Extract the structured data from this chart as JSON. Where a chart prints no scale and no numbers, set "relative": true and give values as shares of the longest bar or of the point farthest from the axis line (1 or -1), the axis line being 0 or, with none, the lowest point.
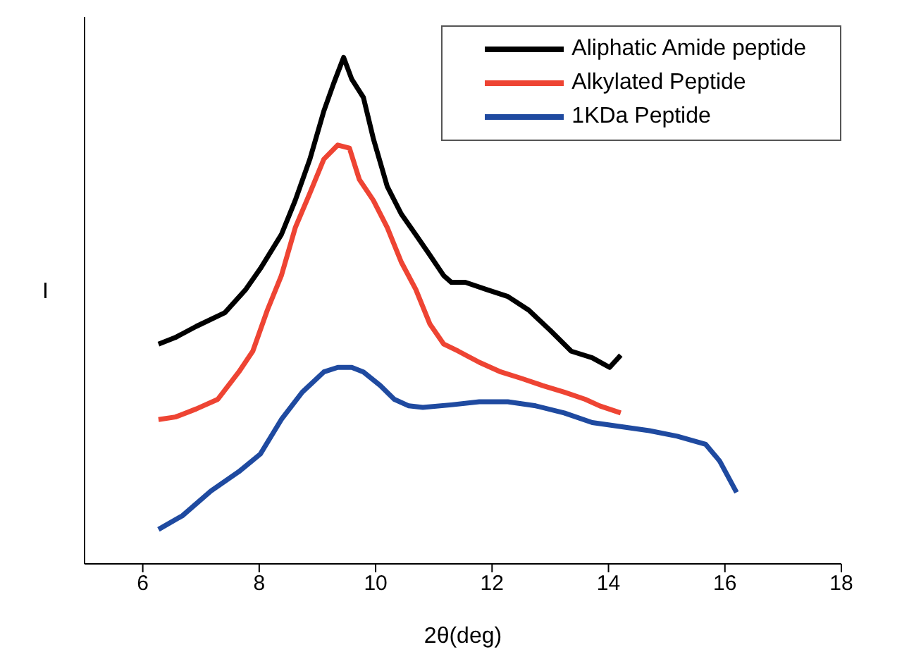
{
  "chart_data": {
    "type": "line",
    "relative": true,
    "xlabel": "2θ(deg)",
    "ylabel": "I",
    "xlim": [
      5,
      18
    ],
    "xticks": [
      6,
      8,
      10,
      12,
      14,
      16,
      18
    ],
    "legend": "top right",
    "grid": false,
    "marker": "none",
    "line_style": "solid",
    "series": [
      {
        "name": "Aliphatic Amide peptide",
        "color": "#000000",
        "x": [
          6.27,
          6.56,
          6.92,
          7.41,
          7.77,
          8.02,
          8.38,
          8.62,
          8.87,
          9.11,
          9.28,
          9.45,
          9.59,
          9.79,
          9.96,
          10.2,
          10.44,
          10.69,
          10.93,
          11.17,
          11.3,
          11.54,
          11.9,
          12.27,
          12.63,
          13.0,
          13.36,
          13.72,
          14.02,
          14.21
        ],
        "values": [
          0.434,
          0.447,
          0.469,
          0.496,
          0.542,
          0.583,
          0.65,
          0.718,
          0.799,
          0.894,
          0.949,
          1,
          0.957,
          0.921,
          0.84,
          0.745,
          0.691,
          0.65,
          0.61,
          0.569,
          0.556,
          0.556,
          0.542,
          0.528,
          0.501,
          0.461,
          0.42,
          0.407,
          0.388,
          0.412
        ]
      },
      {
        "name": "Alkylated Peptide",
        "color": "#ee4433",
        "x": [
          6.27,
          6.56,
          6.92,
          7.29,
          7.65,
          7.89,
          8.14,
          8.38,
          8.62,
          8.87,
          9.11,
          9.35,
          9.55,
          9.72,
          9.96,
          10.2,
          10.44,
          10.69,
          10.93,
          11.17,
          11.42,
          11.78,
          12.15,
          12.51,
          12.87,
          13.24,
          13.6,
          13.85,
          14.21
        ],
        "values": [
          0.285,
          0.29,
          0.306,
          0.325,
          0.379,
          0.42,
          0.501,
          0.569,
          0.664,
          0.732,
          0.799,
          0.827,
          0.821,
          0.759,
          0.718,
          0.664,
          0.596,
          0.542,
          0.474,
          0.434,
          0.42,
          0.398,
          0.379,
          0.366,
          0.352,
          0.339,
          0.325,
          0.312,
          0.298
        ]
      },
      {
        "name": "1KDa Peptide",
        "color": "#1f4aa0",
        "x": [
          6.27,
          6.68,
          7.17,
          7.65,
          8.02,
          8.38,
          8.74,
          9.11,
          9.35,
          9.59,
          9.79,
          10.08,
          10.32,
          10.57,
          10.81,
          11.3,
          11.78,
          12.27,
          12.75,
          13.24,
          13.72,
          14.21,
          14.7,
          15.18,
          15.67,
          15.91,
          16.06,
          16.2
        ],
        "values": [
          0.068,
          0.095,
          0.144,
          0.182,
          0.217,
          0.285,
          0.339,
          0.379,
          0.388,
          0.388,
          0.379,
          0.352,
          0.325,
          0.312,
          0.309,
          0.314,
          0.32,
          0.32,
          0.312,
          0.298,
          0.279,
          0.271,
          0.263,
          0.252,
          0.236,
          0.203,
          0.171,
          0.141
        ]
      }
    ]
  }
}
